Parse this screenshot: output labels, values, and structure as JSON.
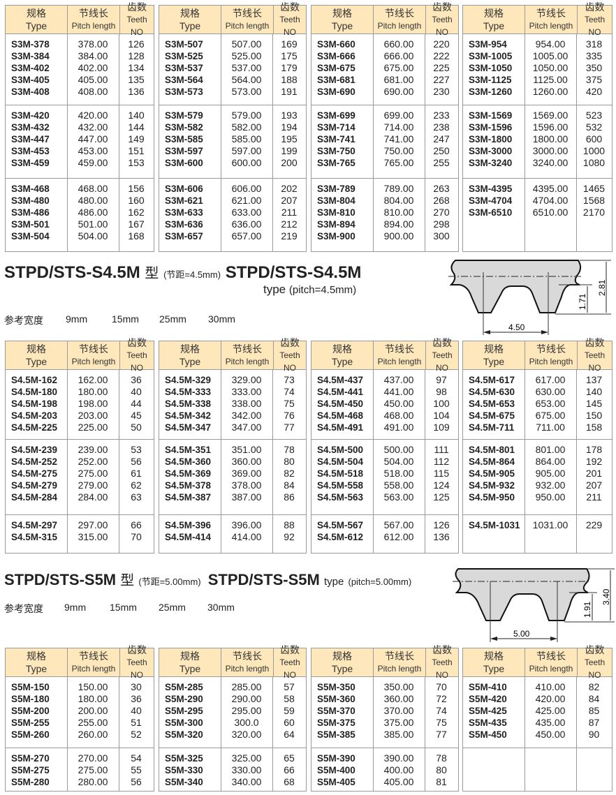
{
  "table_header": {
    "type_cn": "规格",
    "type_en": "Type",
    "pitch_cn": "节线长",
    "pitch_en": "Pitch length",
    "teeth_cn": "齿数",
    "teeth_en": "Teeth NO"
  },
  "sections": [
    {
      "tables": [
        {
          "groups": [
            [
              [
                "S3M-378",
                "378.00",
                "126"
              ],
              [
                "S3M-384",
                "384.00",
                "128"
              ],
              [
                "S3M-402",
                "402.00",
                "134"
              ],
              [
                "S3M-405",
                "405.00",
                "135"
              ],
              [
                "S3M-408",
                "408.00",
                "136"
              ]
            ],
            [
              [
                "S3M-420",
                "420.00",
                "140"
              ],
              [
                "S3M-432",
                "432.00",
                "144"
              ],
              [
                "S3M-447",
                "447.00",
                "149"
              ],
              [
                "S3M-453",
                "453.00",
                "151"
              ],
              [
                "S3M-459",
                "459.00",
                "153"
              ]
            ],
            [
              [
                "S3M-468",
                "468.00",
                "156"
              ],
              [
                "S3M-480",
                "480.00",
                "160"
              ],
              [
                "S3M-486",
                "486.00",
                "162"
              ],
              [
                "S3M-501",
                "501.00",
                "167"
              ],
              [
                "S3M-504",
                "504.00",
                "168"
              ]
            ]
          ]
        },
        {
          "groups": [
            [
              [
                "S3M-507",
                "507.00",
                "169"
              ],
              [
                "S3M-525",
                "525.00",
                "175"
              ],
              [
                "S3M-537",
                "537.00",
                "179"
              ],
              [
                "S3M-564",
                "564.00",
                "188"
              ],
              [
                "S3M-573",
                "573.00",
                "191"
              ]
            ],
            [
              [
                "S3M-579",
                "579.00",
                "193"
              ],
              [
                "S3M-582",
                "582.00",
                "194"
              ],
              [
                "S3M-585",
                "585.00",
                "195"
              ],
              [
                "S3M-597",
                "597.00",
                "199"
              ],
              [
                "S3M-600",
                "600.00",
                "200"
              ]
            ],
            [
              [
                "S3M-606",
                "606.00",
                "202"
              ],
              [
                "S3M-621",
                "621.00",
                "207"
              ],
              [
                "S3M-633",
                "633.00",
                "211"
              ],
              [
                "S3M-636",
                "636.00",
                "212"
              ],
              [
                "S3M-657",
                "657.00",
                "219"
              ]
            ]
          ]
        },
        {
          "groups": [
            [
              [
                "S3M-660",
                "660.00",
                "220"
              ],
              [
                "S3M-666",
                "666.00",
                "222"
              ],
              [
                "S3M-675",
                "675.00",
                "225"
              ],
              [
                "S3M-681",
                "681.00",
                "227"
              ],
              [
                "S3M-690",
                "690.00",
                "230"
              ]
            ],
            [
              [
                "S3M-699",
                "699.00",
                "233"
              ],
              [
                "S3M-714",
                "714.00",
                "238"
              ],
              [
                "S3M-741",
                "741.00",
                "247"
              ],
              [
                "S3M-750",
                "750.00",
                "250"
              ],
              [
                "S3M-765",
                "765.00",
                "255"
              ]
            ],
            [
              [
                "S3M-789",
                "789.00",
                "263"
              ],
              [
                "S3M-804",
                "804.00",
                "268"
              ],
              [
                "S3M-810",
                "810.00",
                "270"
              ],
              [
                "S3M-894",
                "894.00",
                "298"
              ],
              [
                "S3M-900",
                "900.00",
                "300"
              ]
            ]
          ]
        },
        {
          "groups": [
            [
              [
                "S3M-954",
                "954.00",
                "318"
              ],
              [
                "S3M-1005",
                "1005.00",
                "335"
              ],
              [
                "S3M-1050",
                "1050.00",
                "350"
              ],
              [
                "S3M-1125",
                "1125.00",
                "375"
              ],
              [
                "S3M-1260",
                "1260.00",
                "420"
              ]
            ],
            [
              [
                "S3M-1569",
                "1569.00",
                "523"
              ],
              [
                "S3M-1596",
                "1596.00",
                "532"
              ],
              [
                "S3M-1800",
                "1800.00",
                "600"
              ],
              [
                "S3M-3000",
                "3000.00",
                "1000"
              ],
              [
                "S3M-3240",
                "3240.00",
                "1080"
              ]
            ],
            [
              [
                "S3M-4395",
                "4395.00",
                "1465"
              ],
              [
                "S3M-4704",
                "4704.00",
                "1568"
              ],
              [
                "S3M-6510",
                "6510.00",
                "2170"
              ]
            ]
          ]
        }
      ]
    },
    {
      "title": "STPD/STS-S4.5M",
      "title_cn": "型",
      "pitch_cn": "(节距=4.5mm)",
      "title_en": "STPD/STS-S4.5M",
      "type_en": "type",
      "pitch_en": "(pitch=4.5mm)",
      "widths_label": "参考宽度",
      "widths": [
        "9mm",
        "15mm",
        "25mm",
        "30mm"
      ],
      "diagram": {
        "pitch": "4.50",
        "tooth_height": "1.71",
        "total_height": "2.81"
      },
      "tables": [
        {
          "groups": [
            [
              [
                "S4.5M-162",
                "162.00",
                "36"
              ],
              [
                "S4.5M-180",
                "180.00",
                "40"
              ],
              [
                "S4.5M-198",
                "198.00",
                "44"
              ],
              [
                "S4.5M-203",
                "203.00",
                "45"
              ],
              [
                "S4.5M-225",
                "225.00",
                "50"
              ]
            ],
            [
              [
                "S4.5M-239",
                "239.00",
                "53"
              ],
              [
                "S4.5M-252",
                "252.00",
                "56"
              ],
              [
                "S4.5M-275",
                "275.00",
                "61"
              ],
              [
                "S4.5M-279",
                "279.00",
                "62"
              ],
              [
                "S4.5M-284",
                "284.00",
                "63"
              ]
            ],
            [
              [
                "S4.5M-297",
                "297.00",
                "66"
              ],
              [
                "S4.5M-315",
                "315.00",
                "70"
              ]
            ]
          ]
        },
        {
          "groups": [
            [
              [
                "S4.5M-329",
                "329.00",
                "73"
              ],
              [
                "S4.5M-333",
                "333.00",
                "74"
              ],
              [
                "S4.5M-338",
                "338.00",
                "75"
              ],
              [
                "S4.5M-342",
                "342.00",
                "76"
              ],
              [
                "S4.5M-347",
                "347.00",
                "77"
              ]
            ],
            [
              [
                "S4.5M-351",
                "351.00",
                "78"
              ],
              [
                "S4.5M-360",
                "360.00",
                "80"
              ],
              [
                "S4.5M-369",
                "369.00",
                "82"
              ],
              [
                "S4.5M-378",
                "378.00",
                "84"
              ],
              [
                "S4.5M-387",
                "387.00",
                "86"
              ]
            ],
            [
              [
                "S4.5M-396",
                "396.00",
                "88"
              ],
              [
                "S4.5M-414",
                "414.00",
                "92"
              ]
            ]
          ]
        },
        {
          "groups": [
            [
              [
                "S4.5M-437",
                "437.00",
                "97"
              ],
              [
                "S4.5M-441",
                "441.00",
                "98"
              ],
              [
                "S4.5M-450",
                "450.00",
                "100"
              ],
              [
                "S4.5M-468",
                "468.00",
                "104"
              ],
              [
                "S4.5M-491",
                "491.00",
                "109"
              ]
            ],
            [
              [
                "S4.5M-500",
                "500.00",
                "111"
              ],
              [
                "S4.5M-504",
                "504.00",
                "112"
              ],
              [
                "S4.5M-518",
                "518.00",
                "115"
              ],
              [
                "S4.5M-558",
                "558.00",
                "124"
              ],
              [
                "S4.5M-563",
                "563.00",
                "125"
              ]
            ],
            [
              [
                "S4.5M-567",
                "567.00",
                "126"
              ],
              [
                "S4.5M-612",
                "612.00",
                "136"
              ]
            ]
          ]
        },
        {
          "groups": [
            [
              [
                "S4.5M-617",
                "617.00",
                "137"
              ],
              [
                "S4.5M-630",
                "630.00",
                "140"
              ],
              [
                "S4.5M-653",
                "653.00",
                "145"
              ],
              [
                "S4.5M-675",
                "675.00",
                "150"
              ],
              [
                "S4.5M-711",
                "711.00",
                "158"
              ]
            ],
            [
              [
                "S4.5M-801",
                "801.00",
                "178"
              ],
              [
                "S4.5M-864",
                "864.00",
                "192"
              ],
              [
                "S4.5M-905",
                "905.00",
                "201"
              ],
              [
                "S4.5M-932",
                "932.00",
                "207"
              ],
              [
                "S4.5M-950",
                "950.00",
                "211"
              ]
            ],
            [
              [
                "S4.5M-1031",
                "1031.00",
                "229"
              ]
            ]
          ]
        }
      ]
    },
    {
      "title": "STPD/STS-S5M",
      "title_cn": "型",
      "pitch_cn": "(节距=5.00mm)",
      "title_en": "STPD/STS-S5M",
      "type_en": "type",
      "pitch_en": "(pitch=5.00mm)",
      "widths_label": "参考宽度",
      "widths": [
        "9mm",
        "15mm",
        "25mm",
        "30mm"
      ],
      "diagram": {
        "pitch": "5.00",
        "tooth_height": "1.91",
        "total_height": "3.40"
      },
      "tables": [
        {
          "groups": [
            [
              [
                "S5M-150",
                "150.00",
                "30"
              ],
              [
                "S5M-180",
                "180.00",
                "36"
              ],
              [
                "S5M-200",
                "200.00",
                "40"
              ],
              [
                "S5M-255",
                "255.00",
                "51"
              ],
              [
                "S5M-260",
                "260.00",
                "52"
              ]
            ],
            [
              [
                "S5M-270",
                "270.00",
                "54"
              ],
              [
                "S5M-275",
                "275.00",
                "55"
              ],
              [
                "S5M-280",
                "280.00",
                "56"
              ]
            ]
          ]
        },
        {
          "groups": [
            [
              [
                "S5M-285",
                "285.00",
                "57"
              ],
              [
                "S5M-290",
                "290.00",
                "58"
              ],
              [
                "S5M-295",
                "295.00",
                "59"
              ],
              [
                "S5M-300",
                "300.0",
                "60"
              ],
              [
                "S5M-320",
                "320.00",
                "64"
              ]
            ],
            [
              [
                "S5M-325",
                "325.00",
                "65"
              ],
              [
                "S5M-330",
                "330.00",
                "66"
              ],
              [
                "S5M-340",
                "340.00",
                "68"
              ]
            ]
          ]
        },
        {
          "groups": [
            [
              [
                "S5M-350",
                "350.00",
                "70"
              ],
              [
                "S5M-360",
                "360.00",
                "72"
              ],
              [
                "S5M-370",
                "370.00",
                "74"
              ],
              [
                "S5M-375",
                "375.00",
                "75"
              ],
              [
                "S5M-385",
                "385.00",
                "77"
              ]
            ],
            [
              [
                "S5M-390",
                "390.00",
                "78"
              ],
              [
                "S5M-400",
                "400.00",
                "80"
              ],
              [
                "S5M-405",
                "405.00",
                "81"
              ]
            ]
          ]
        },
        {
          "groups": [
            [
              [
                "S5M-410",
                "410.00",
                "82"
              ],
              [
                "S5M-420",
                "420.00",
                "84"
              ],
              [
                "S5M-425",
                "425.00",
                "85"
              ],
              [
                "S5M-435",
                "435.00",
                "87"
              ],
              [
                "S5M-450",
                "450.00",
                "90"
              ]
            ],
            []
          ]
        }
      ]
    }
  ]
}
